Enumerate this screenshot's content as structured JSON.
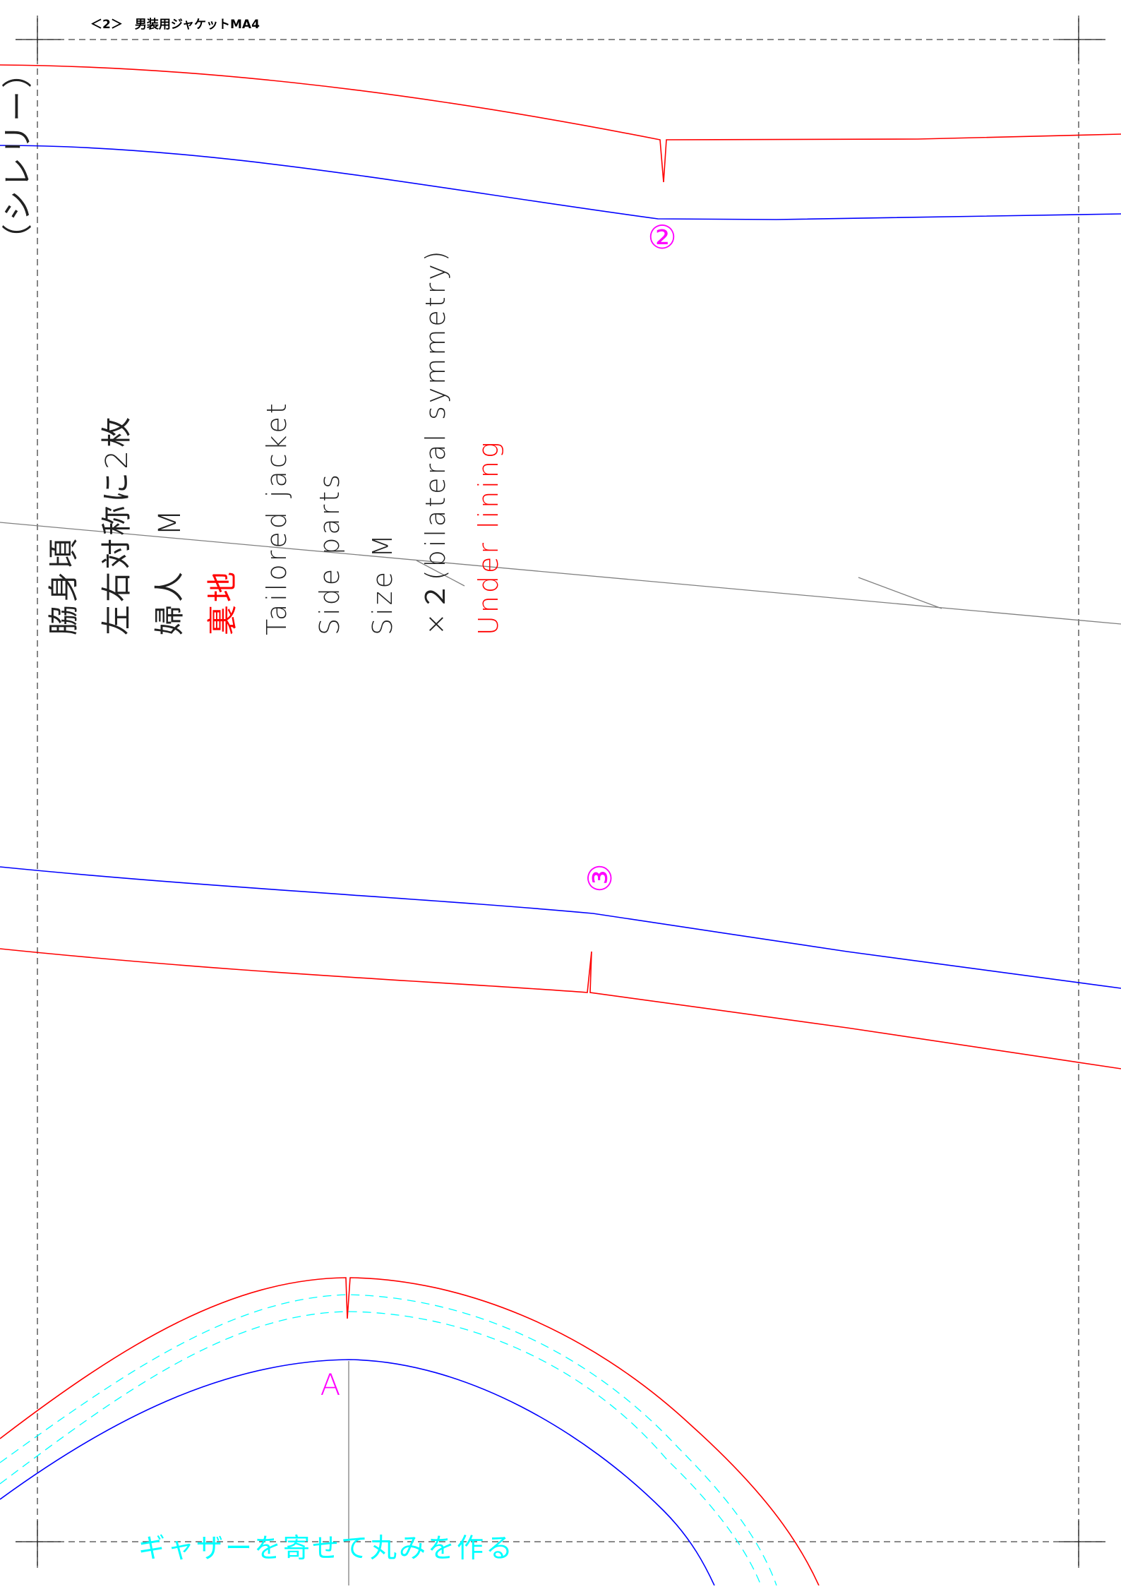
{
  "header": {
    "page_number": "＜2＞",
    "title": "男装用ジャケットMA4"
  },
  "piece_info": {
    "top_partial": "（シレリー）",
    "lines_jp": [
      {
        "text": "脇身頃",
        "color": "#222222"
      },
      {
        "text": "左右対称に2枚",
        "color": "#222222"
      },
      {
        "text": "婦人　M",
        "color": "#222222"
      },
      {
        "text": "裏地",
        "color": "#ff0000"
      }
    ],
    "lines_en": [
      {
        "text": "Tailored jacket",
        "color": "#222222"
      },
      {
        "text": "Side parts",
        "color": "#222222"
      },
      {
        "text": "Size M",
        "color": "#222222"
      },
      {
        "text": "×２(bilateral symmetry)",
        "color": "#222222"
      },
      {
        "text": "Under lining",
        "color": "#ff0000"
      }
    ]
  },
  "markers": {
    "notch_2": "②",
    "notch_3": "③",
    "point_a": "A"
  },
  "annotation": {
    "gather_note": "ギャザーを寄せて丸みを作る"
  },
  "colors": {
    "seam_line": "#ff0000",
    "finish_line": "#0000ff",
    "marker": "#ff00ff",
    "guide": "#00ffff",
    "grain_line": "#808080",
    "border": "#444444"
  }
}
